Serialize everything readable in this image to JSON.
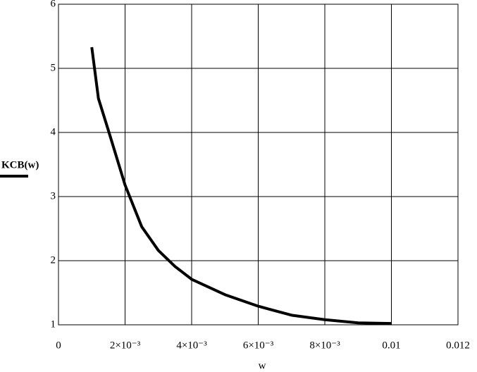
{
  "chart_data": {
    "type": "line",
    "xlabel": "w",
    "legend_label": "KCB(w)",
    "x": [
      0.001,
      0.0012,
      0.0015,
      0.002,
      0.0025,
      0.003,
      0.0035,
      0.004,
      0.005,
      0.006,
      0.007,
      0.008,
      0.009,
      0.01
    ],
    "series": [
      {
        "name": "KCB(w)",
        "color": "#000000",
        "values": [
          5.33,
          4.53,
          4.03,
          3.18,
          2.53,
          2.16,
          1.91,
          1.71,
          1.47,
          1.29,
          1.15,
          1.08,
          1.03,
          1.02
        ]
      }
    ],
    "xlim": [
      0,
      0.012
    ],
    "xticks": [
      0,
      {
        "value": 0.002,
        "label": "2×10⁻³"
      },
      {
        "value": 0.004,
        "label": "4×10⁻³"
      },
      {
        "value": 0.006,
        "label": "6×10⁻³"
      },
      {
        "value": 0.008,
        "label": "8×10⁻³"
      },
      0.01,
      0.012
    ],
    "ylim": [
      1,
      6
    ],
    "yticks": [
      1,
      2,
      3,
      4,
      5,
      6
    ],
    "grid": true
  }
}
